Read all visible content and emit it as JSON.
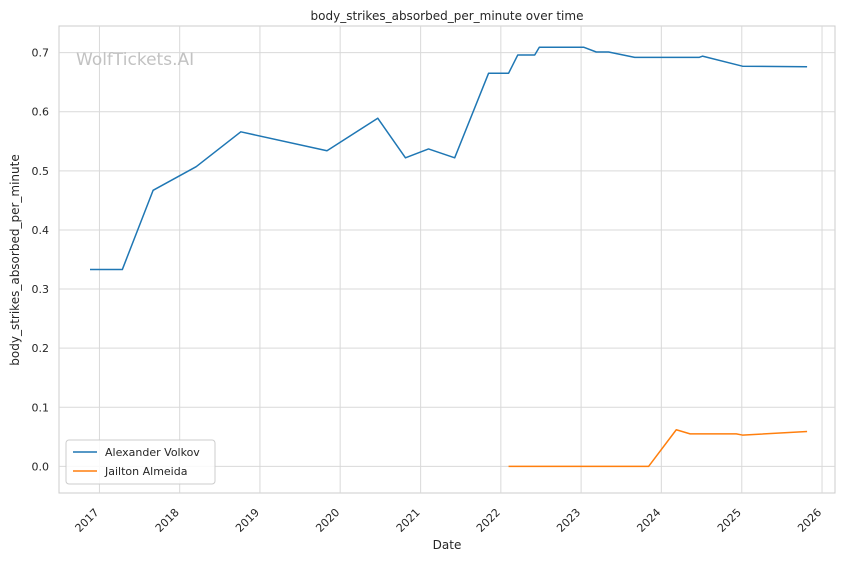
{
  "chart_data": {
    "type": "line",
    "title": "body_strikes_absorbed_per_minute over time",
    "xlabel": "Date",
    "ylabel": "body_strikes_absorbed_per_minute",
    "watermark": "WolfTickets.AI",
    "xlim": [
      "2016-07-01",
      "2026-03-01"
    ],
    "ylim": [
      -0.045,
      0.745
    ],
    "x_ticks": [
      "2017-01-01",
      "2018-01-01",
      "2019-01-01",
      "2020-01-01",
      "2021-01-01",
      "2022-01-01",
      "2023-01-01",
      "2024-01-01",
      "2025-01-01",
      "2026-01-01"
    ],
    "x_tick_labels": [
      "2017",
      "2018",
      "2019",
      "2020",
      "2021",
      "2022",
      "2023",
      "2024",
      "2025",
      "2026"
    ],
    "y_ticks": [
      0.0,
      0.1,
      0.2,
      0.3,
      0.4,
      0.5,
      0.6,
      0.7
    ],
    "y_tick_labels": [
      "0.0",
      "0.1",
      "0.2",
      "0.3",
      "0.4",
      "0.5",
      "0.6",
      "0.7"
    ],
    "grid": true,
    "legend_position": "lower-left",
    "series": [
      {
        "name": "Alexander Volkov",
        "color": "#1f77b4",
        "points": [
          [
            "2016-11-19",
            0.333
          ],
          [
            "2017-04-15",
            0.333
          ],
          [
            "2017-09-02",
            0.467
          ],
          [
            "2018-03-17",
            0.507
          ],
          [
            "2018-10-06",
            0.566
          ],
          [
            "2019-11-02",
            0.534
          ],
          [
            "2020-06-20",
            0.589
          ],
          [
            "2020-10-24",
            0.522
          ],
          [
            "2021-02-06",
            0.537
          ],
          [
            "2021-06-05",
            0.522
          ],
          [
            "2021-11-06",
            0.665
          ],
          [
            "2022-02-05",
            0.665
          ],
          [
            "2022-03-19",
            0.696
          ],
          [
            "2022-06-04",
            0.696
          ],
          [
            "2022-06-25",
            0.709
          ],
          [
            "2023-01-14",
            0.709
          ],
          [
            "2023-03-11",
            0.701
          ],
          [
            "2023-05-06",
            0.701
          ],
          [
            "2023-09-02",
            0.692
          ],
          [
            "2024-06-22",
            0.692
          ],
          [
            "2024-07-06",
            0.694
          ],
          [
            "2025-01-04",
            0.677
          ],
          [
            "2025-10-25",
            0.676
          ]
        ]
      },
      {
        "name": "Jailton Almeida",
        "color": "#ff7f0e",
        "points": [
          [
            "2022-02-05",
            0.0
          ],
          [
            "2023-11-04",
            0.0
          ],
          [
            "2024-03-09",
            0.062
          ],
          [
            "2024-05-11",
            0.055
          ],
          [
            "2024-12-07",
            0.055
          ],
          [
            "2025-01-04",
            0.053
          ],
          [
            "2025-10-25",
            0.059
          ]
        ]
      }
    ]
  }
}
